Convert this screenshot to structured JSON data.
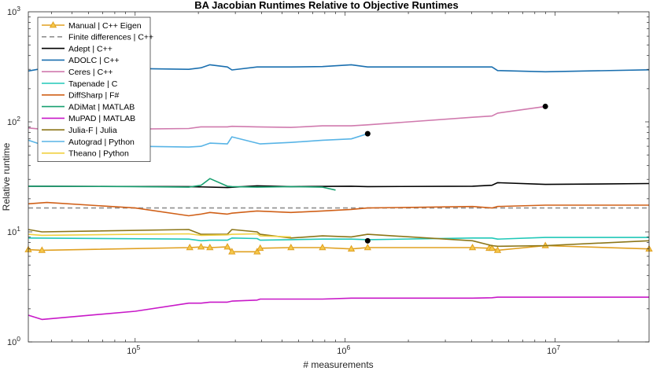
{
  "chart_data": {
    "type": "line",
    "title": "BA Jacobian Runtimes Relative to Objective Runtimes",
    "xlabel": "# measurements",
    "ylabel": "Relative runtime",
    "xscale": "log",
    "yscale": "log",
    "xlim": [
      31000,
      28000000
    ],
    "ylim": [
      1,
      1000
    ],
    "xticks": [
      {
        "value": 100000,
        "base": "10",
        "exp": "5"
      },
      {
        "value": 1000000,
        "base": "10",
        "exp": "6"
      },
      {
        "value": 10000000,
        "base": "10",
        "exp": "7"
      }
    ],
    "yticks": [
      {
        "value": 1,
        "base": "10",
        "exp": "0"
      },
      {
        "value": 10,
        "base": "10",
        "exp": "1"
      },
      {
        "value": 100,
        "base": "10",
        "exp": "2"
      },
      {
        "value": 1000,
        "base": "10",
        "exp": "3"
      }
    ],
    "grid": false,
    "legend_position": "top-left",
    "series": [
      {
        "name": "Manual | C++ Eigen",
        "color": "#E0A020",
        "marker": "triangle",
        "dashed": false,
        "x": [
          31000,
          36000,
          182000,
          206000,
          227000,
          275000,
          289000,
          381000,
          394000,
          552000,
          780000,
          1070000,
          1280000,
          4040000,
          4850000,
          5000000,
          5320000,
          8980000,
          28000000
        ],
        "y": [
          6.9,
          6.8,
          7.2,
          7.3,
          7.2,
          7.3,
          6.6,
          6.6,
          7.1,
          7.2,
          7.2,
          7.0,
          7.2,
          7.2,
          7.1,
          7.1,
          6.8,
          7.5,
          7.0
        ]
      },
      {
        "name": "Finite differences | C++",
        "color": "#909090",
        "marker": "none",
        "dashed": true,
        "x": [
          31000,
          28000000
        ],
        "y": [
          16.5,
          16.5
        ]
      },
      {
        "name": "Adept | C++",
        "color": "#000000",
        "marker": "none",
        "dashed": false,
        "x": [
          31000,
          180000,
          275000,
          381000,
          552000,
          1070000,
          1280000,
          4040000,
          5000000,
          5320000,
          8980000,
          28000000
        ],
        "y": [
          26.0,
          25.8,
          25.3,
          26.2,
          25.8,
          26.0,
          25.8,
          26.0,
          26.5,
          28.0,
          27.0,
          27.5
        ]
      },
      {
        "name": "ADOLC | C++",
        "color": "#1A6FAF",
        "marker": "none",
        "dashed": false,
        "x": [
          31000,
          38000,
          100000,
          180000,
          206000,
          227000,
          275000,
          289000,
          381000,
          552000,
          780000,
          1070000,
          1280000,
          4040000,
          5000000,
          5320000,
          8980000,
          28000000
        ],
        "y": [
          290,
          310,
          305,
          300,
          310,
          330,
          315,
          296,
          315,
          315,
          318,
          330,
          315,
          315,
          315,
          292,
          285,
          297
        ]
      },
      {
        "name": "Ceres | C++",
        "color": "#D07AAE",
        "marker": "none",
        "dashed": false,
        "x": [
          31000,
          38000,
          100000,
          180000,
          206000,
          227000,
          275000,
          289000,
          381000,
          552000,
          780000,
          1070000,
          1280000,
          4040000,
          5000000,
          5320000,
          8980000
        ],
        "y": [
          88,
          85,
          86,
          87,
          90,
          90,
          90,
          91,
          90,
          89,
          92,
          92,
          94,
          110,
          113,
          120,
          138
        ]
      },
      {
        "name": "Tapenade | C",
        "color": "#20C8B8",
        "marker": "none",
        "dashed": false,
        "x": [
          31000,
          180000,
          206000,
          227000,
          275000,
          289000,
          381000,
          394000,
          552000,
          780000,
          1070000,
          1280000,
          4040000,
          5000000,
          5320000,
          8980000,
          28000000
        ],
        "y": [
          8.8,
          8.6,
          8.3,
          8.4,
          8.4,
          8.8,
          8.7,
          8.4,
          8.5,
          8.6,
          8.6,
          8.5,
          8.8,
          8.8,
          8.6,
          8.9,
          8.9
        ]
      },
      {
        "name": "DiffSharp | F#",
        "color": "#D06018",
        "marker": "none",
        "dashed": false,
        "x": [
          31000,
          38000,
          100000,
          180000,
          206000,
          227000,
          275000,
          289000,
          381000,
          552000,
          780000,
          1070000,
          1280000,
          4040000,
          5000000,
          5320000,
          8980000,
          28000000
        ],
        "y": [
          18.0,
          18.5,
          16.5,
          14.0,
          14.5,
          15.0,
          14.5,
          14.8,
          15.5,
          15.0,
          15.5,
          16.0,
          16.5,
          17.0,
          16.5,
          17.0,
          17.5,
          17.5
        ]
      },
      {
        "name": "ADiMat | MATLAB",
        "color": "#18A070",
        "marker": "none",
        "dashed": false,
        "x": [
          31000,
          100000,
          180000,
          206000,
          227000,
          275000,
          289000,
          381000,
          552000,
          780000,
          900000
        ],
        "y": [
          26.0,
          25.8,
          25.5,
          26.5,
          30.5,
          26.0,
          25.8,
          25.5,
          25.8,
          25.5,
          24.0
        ]
      },
      {
        "name": "MuPAD | MATLAB",
        "color": "#C818C8",
        "marker": "none",
        "dashed": false,
        "x": [
          31000,
          36000,
          100000,
          180000,
          206000,
          227000,
          275000,
          289000,
          381000,
          394000,
          552000,
          780000,
          1070000,
          1280000,
          4040000,
          5000000,
          5320000,
          8980000,
          28000000
        ],
        "y": [
          1.75,
          1.6,
          1.9,
          2.25,
          2.25,
          2.3,
          2.3,
          2.35,
          2.4,
          2.45,
          2.45,
          2.45,
          2.5,
          2.5,
          2.5,
          2.52,
          2.55,
          2.55,
          2.55
        ]
      },
      {
        "name": "Julia-F | Julia",
        "color": "#8C7618",
        "marker": "none",
        "dashed": false,
        "x": [
          31000,
          36000,
          180000,
          206000,
          275000,
          289000,
          381000,
          394000,
          552000,
          780000,
          1070000,
          1280000,
          4040000,
          5000000,
          5320000,
          8980000,
          28000000
        ],
        "y": [
          10.5,
          10.0,
          10.5,
          9.5,
          9.5,
          10.5,
          10.0,
          9.5,
          8.8,
          9.2,
          9.0,
          9.5,
          8.3,
          7.5,
          7.4,
          7.5,
          8.3
        ]
      },
      {
        "name": "Autograd | Python",
        "color": "#58B4E6",
        "marker": "none",
        "dashed": false,
        "x": [
          31000,
          36000,
          100000,
          180000,
          206000,
          227000,
          275000,
          289000,
          381000,
          394000,
          552000,
          780000,
          1070000,
          1280000
        ],
        "y": [
          68,
          62,
          60,
          59,
          60,
          64,
          63,
          73,
          64,
          63,
          65,
          68,
          70,
          78
        ]
      },
      {
        "name": "Theano | Python",
        "color": "#F0D040",
        "marker": "none",
        "dashed": false,
        "x": [
          31000,
          36000,
          100000,
          180000,
          206000,
          275000,
          289000,
          381000,
          394000,
          552000
        ],
        "y": [
          9.5,
          9.3,
          9.5,
          9.6,
          9.3,
          9.4,
          9.5,
          9.6,
          9.2,
          9.0
        ]
      }
    ],
    "markers": [
      {
        "x": 8980000,
        "y": 138
      },
      {
        "x": 1280000,
        "y": 78
      },
      {
        "x": 1280000,
        "y": 8.3
      }
    ]
  }
}
